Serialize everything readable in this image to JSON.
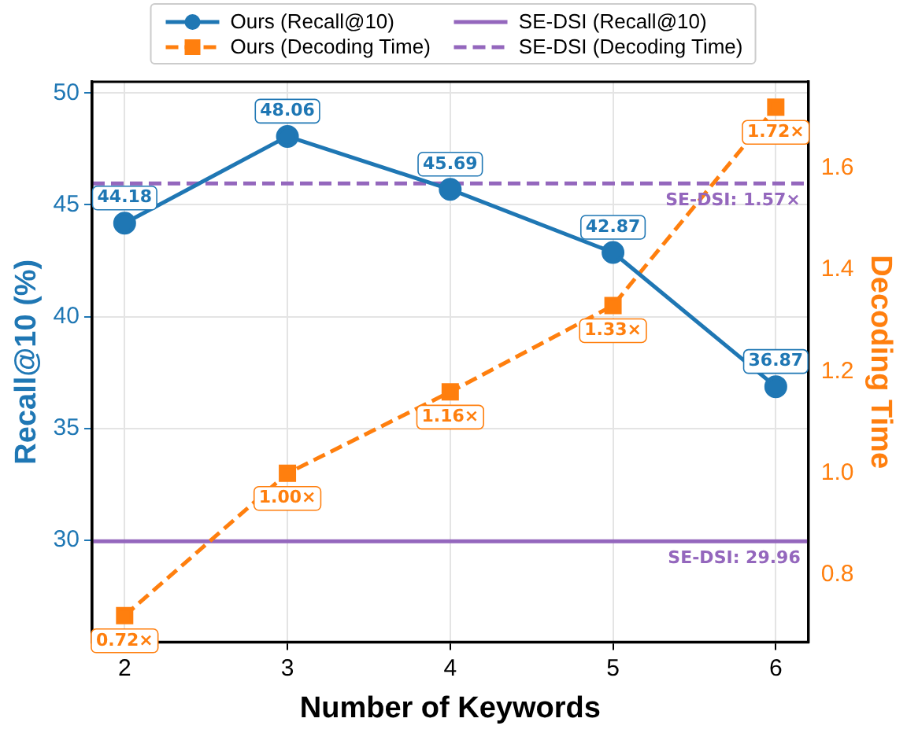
{
  "chart_data": {
    "type": "line",
    "xlabel": "Number of Keywords",
    "ylabel": "Recall@10 (%)",
    "y2label": "Decoding Time",
    "xlim": [
      1.8,
      6.2
    ],
    "xticks": [
      2,
      3,
      4,
      5,
      6
    ],
    "ylim": [
      25.45,
      50.5
    ],
    "yticks": [
      30,
      35,
      40,
      45,
      50
    ],
    "y2lim": [
      0.668,
      1.77
    ],
    "y2ticks": [
      0.8,
      {
        "value": 1,
        "label": "1.0"
      },
      1.2,
      1.4,
      1.6
    ],
    "grid": true,
    "legend": "top",
    "series": [
      {
        "name": "Ours (Recall@10)",
        "color": "#1f77b4",
        "x": [
          2,
          3,
          4,
          5,
          6
        ],
        "values": [
          44.18,
          48.06,
          45.69,
          42.87,
          36.87
        ],
        "marker": "circle",
        "line_style": "solid",
        "value_labels": [
          "44.18",
          "48.06",
          "45.69",
          "42.87",
          "36.87"
        ]
      },
      {
        "name": "Ours (Decoding Time)",
        "color": "#ff7f0e",
        "axis": "y2",
        "x": [
          2,
          3,
          4,
          5,
          6
        ],
        "values": [
          0.72,
          1.0,
          1.16,
          1.33,
          1.72
        ],
        "marker": "square",
        "line_style": "dashed",
        "value_labels": [
          "0.72×",
          "1.00×",
          "1.16×",
          "1.33×",
          "1.72×"
        ]
      },
      {
        "name": "SE-DSI (Recall@10)",
        "color": "#9467bd",
        "x": [
          1.8,
          6.2
        ],
        "values": [
          29.96,
          29.96
        ],
        "marker": "none",
        "line_style": "solid",
        "value_labels": [
          null,
          "SE-DSI: 29.96"
        ]
      },
      {
        "name": "SE-DSI (Decoding Time)",
        "color": "#9467bd",
        "axis": "y2",
        "x": [
          1.8,
          6.2
        ],
        "values": [
          1.57,
          1.57
        ],
        "marker": "none",
        "line_style": "dashed",
        "value_labels": [
          null,
          "SE-DSI: 1.57×"
        ]
      }
    ]
  }
}
